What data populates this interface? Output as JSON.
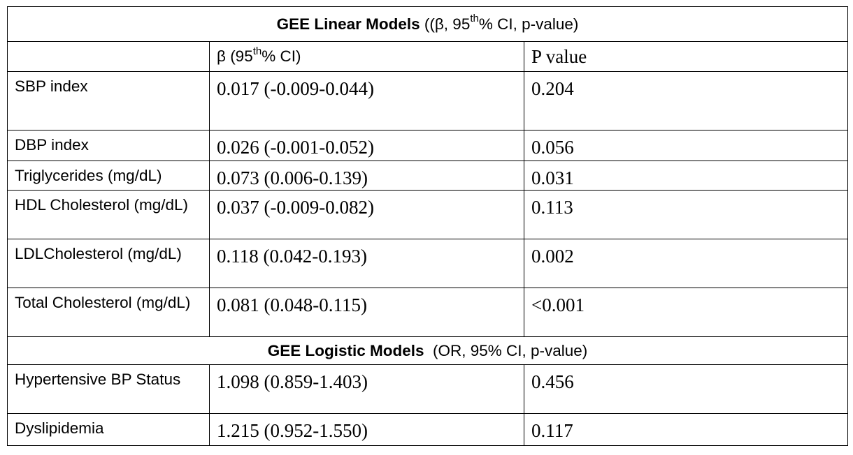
{
  "table": {
    "linear_section": {
      "bold": "GEE Linear Models",
      "rest_pre": " ((β, 95",
      "sup": "th",
      "rest_post": "% CI, p-value)"
    },
    "header": {
      "blank": "",
      "beta_pre": "β (95",
      "beta_sup": "th",
      "beta_post": "% CI)",
      "p": "P value"
    },
    "linear_rows": [
      {
        "label": "SBP index",
        "ci": "0.017 (-0.009-0.044)",
        "p": "0.204"
      },
      {
        "label": "DBP index",
        "ci": "0.026 (-0.001-0.052)",
        "p": "0.056"
      },
      {
        "label": "Triglycerides (mg/dL)",
        "ci": "0.073 (0.006-0.139)",
        "p": "0.031"
      },
      {
        "label": "HDL Cholesterol (mg/dL)",
        "ci": "0.037 (-0.009-0.082)",
        "p": "0.113"
      },
      {
        "label": "LDLCholesterol (mg/dL)",
        "ci": "0.118 (0.042-0.193)",
        "p": "0.002"
      },
      {
        "label": "Total Cholesterol (mg/dL)",
        "ci": "0.081 (0.048-0.115)",
        "p": "<0.001"
      }
    ],
    "logistic_section": {
      "bold": "GEE Logistic Models",
      "rest": "  (OR, 95% CI, p-value)"
    },
    "logistic_rows": [
      {
        "label": "Hypertensive BP Status",
        "ci": "1.098 (0.859-1.403)",
        "p": "0.456"
      },
      {
        "label": "Dyslipidemia",
        "ci": "1.215 (0.952-1.550)",
        "p": "0.117"
      }
    ]
  }
}
